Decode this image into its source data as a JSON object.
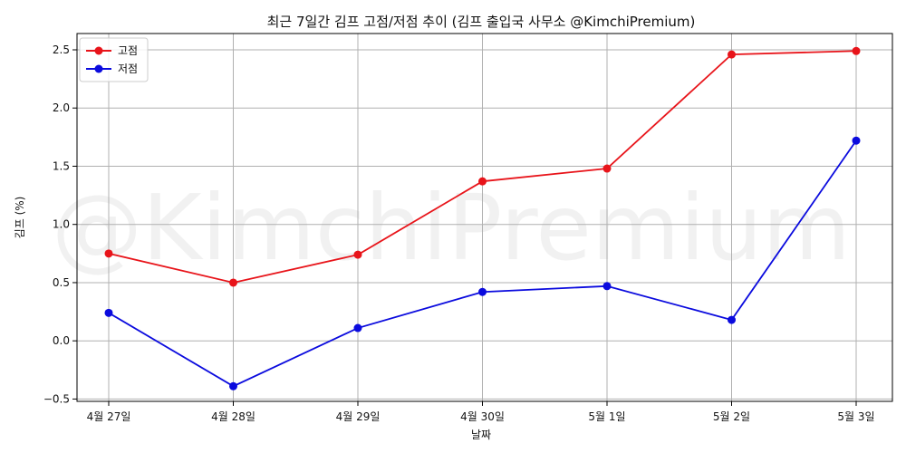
{
  "chart_data": {
    "type": "line",
    "title": "최근 7일간 김프 고점/저점 추이 (김프 출입국 사무소 @KimchiPremium)",
    "xlabel": "날짜",
    "ylabel": "김프 (%)",
    "categories": [
      "4월 27일",
      "4월 28일",
      "4월 29일",
      "4월 30일",
      "5월 1일",
      "5월 2일",
      "5월 3일"
    ],
    "series": [
      {
        "name": "고점",
        "color": "#e8141a",
        "values": [
          0.75,
          0.5,
          0.74,
          1.37,
          1.48,
          2.46,
          2.49
        ]
      },
      {
        "name": "저점",
        "color": "#0b0bde",
        "values": [
          0.24,
          -0.39,
          0.11,
          0.42,
          0.47,
          0.18,
          1.72
        ]
      }
    ],
    "ylim": [
      -0.52,
      2.64
    ],
    "yticks": [
      -0.5,
      0.0,
      0.5,
      1.0,
      1.5,
      2.0,
      2.5
    ],
    "ytick_labels": [
      "−0.5",
      "0.0",
      "0.5",
      "1.0",
      "1.5",
      "2.0",
      "2.5"
    ],
    "grid": true,
    "legend_position": "top-left",
    "watermark": "@KimchiPremium"
  }
}
